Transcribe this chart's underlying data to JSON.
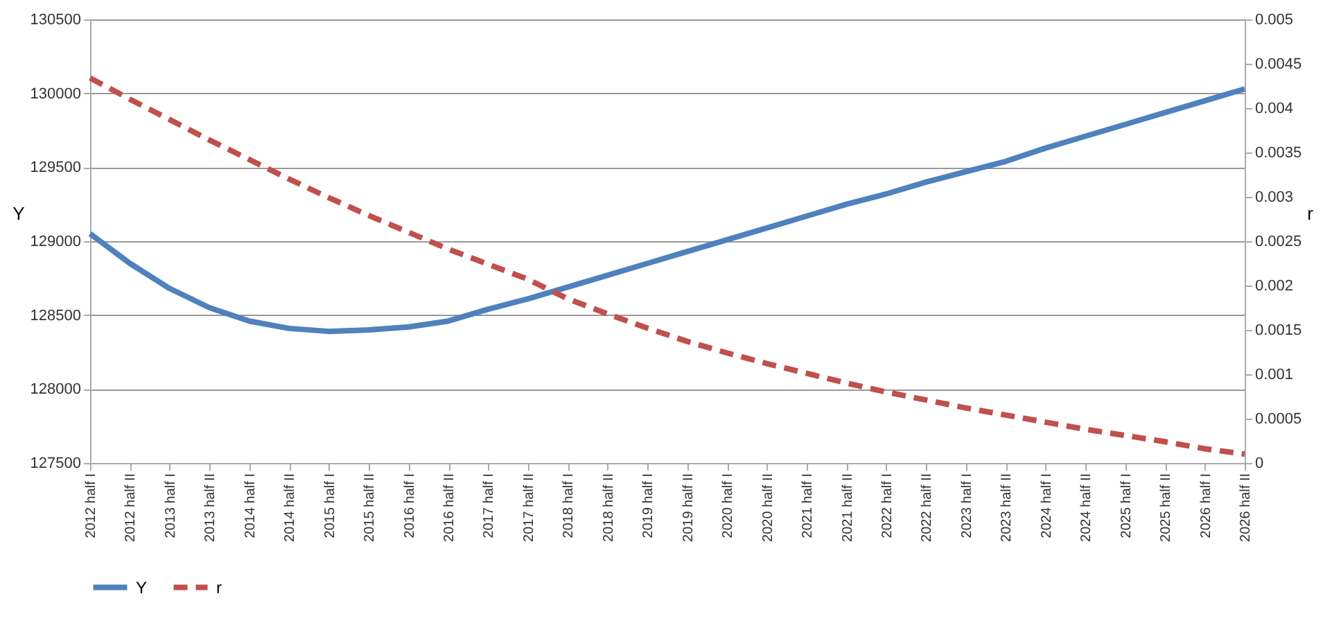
{
  "chart_data": {
    "type": "line",
    "ylabel": "Y",
    "y2label": "r",
    "categories": [
      "2012 half I",
      "2012 half II",
      "2013 half I",
      "2013 half II",
      "2014 half I",
      "2014 half II",
      "2015 half I",
      "2015 half II",
      "2016 half I",
      "2016 half II",
      "2017 half I",
      "2017 half II",
      "2018 half I",
      "2018 half II",
      "2019 half I",
      "2019 half II",
      "2020 half I",
      "2020 half II",
      "2021 half I",
      "2021 half II",
      "2022 half I",
      "2022 half II",
      "2023 half I",
      "2023 half II",
      "2024 half I",
      "2024 half II",
      "2025 half I",
      "2025 half II",
      "2026 half I",
      "2026 half II"
    ],
    "series": [
      {
        "name": "Y",
        "color": "#4f81bd",
        "line_style": "solid",
        "values": [
          129050,
          128850,
          128680,
          128550,
          128460,
          128410,
          128390,
          128400,
          128420,
          128460,
          128540,
          128610,
          128690,
          128770,
          128850,
          128930,
          129010,
          129090,
          129170,
          129250,
          129320,
          129400,
          129470,
          129540,
          129630,
          129710,
          129790,
          129870,
          129950,
          130030
        ]
      },
      {
        "name": "r",
        "color": "#c0504d",
        "line_style": "dashed",
        "axis": "y2",
        "values": [
          0.00434,
          0.0041,
          0.00387,
          0.00364,
          0.00342,
          0.0032,
          0.00299,
          0.00279,
          0.0026,
          0.00241,
          0.00224,
          0.00207,
          0.00185,
          0.00168,
          0.00152,
          0.00137,
          0.00124,
          0.00112,
          0.00101,
          0.0009,
          0.0008,
          0.00071,
          0.00062,
          0.00054,
          0.00046,
          0.00038,
          0.00031,
          0.00024,
          0.00016,
          0.0001
        ]
      }
    ],
    "ylim": [
      127500,
      130500
    ],
    "yticks": [
      127500,
      128000,
      128500,
      129000,
      129500,
      130000,
      130500
    ],
    "y2lim": [
      0,
      0.005
    ],
    "y2ticks": [
      0,
      0.0005,
      0.001,
      0.0015,
      0.002,
      0.0025,
      0.003,
      0.0035,
      0.004,
      0.0045,
      0.005
    ],
    "grid": "y",
    "legend": "bottom"
  }
}
